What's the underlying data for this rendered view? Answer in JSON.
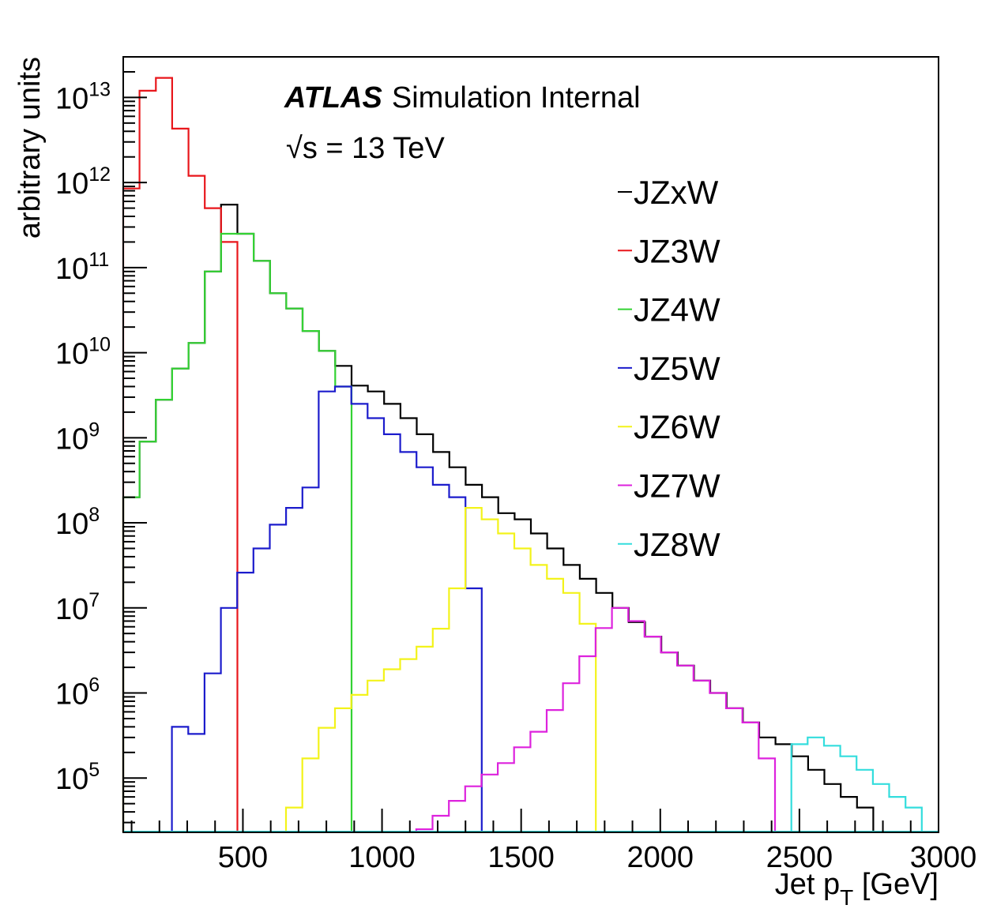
{
  "chart_data": {
    "type": "histogram",
    "x_scale": "linear",
    "y_scale": "log",
    "xlim": [
      70,
      3000
    ],
    "ylim": [
      23000,
      30000000000000
    ],
    "bin_width": 58.6,
    "xlabel_main": "Jet p",
    "xlabel_sub": "T",
    "xlabel_unit": " [GeV]",
    "ylabel": "arbitrary units",
    "x_ticks": [
      500,
      1000,
      1500,
      2000,
      2500,
      3000
    ],
    "x_tick_labels": [
      "500",
      "1000",
      "1500",
      "2000",
      "2500",
      "3000"
    ],
    "y_tick_exponents": [
      5,
      6,
      7,
      8,
      9,
      10,
      11,
      12,
      13
    ],
    "y_tick_base": "10",
    "annotation": {
      "atlas": "ATLAS",
      "status": "Simulation Internal",
      "energy_sqrt": "√s",
      "energy_rest": " = 13 TeV"
    },
    "legend_position": "top-right",
    "series": [
      {
        "name": "JZxW",
        "color": "#000000",
        "start": 70,
        "values": [
          200000000.0,
          900000000.0,
          2800000000.0,
          6500000000.0,
          13000000000.0,
          90000000000.0,
          550000000000.0,
          250000000000.0,
          120000000000.0,
          50000000000.0,
          33000000000.0,
          18000000000.0,
          10500000000.0,
          7000000000.0,
          4100000000.0,
          3500000000.0,
          2500000000.0,
          1700000000.0,
          1100000000.0,
          680000000.0,
          450000000.0,
          280000000.0,
          200000000.0,
          130000000.0,
          110000000.0,
          75000000.0,
          50000000.0,
          32000000.0,
          22000000.0,
          15000000.0,
          10000000.0,
          6800000.0,
          4600000.0,
          3000000.0,
          2100000.0,
          1400000.0,
          1000000.0,
          660000.0,
          450000.0,
          300000.0,
          250000.0,
          180000.0,
          125000.0,
          85000.0,
          60000.0,
          45000.0
        ]
      },
      {
        "name": "JZ3W",
        "color": "#e8161b",
        "start": 70,
        "values": [
          850000000000.0,
          12000000000000.0,
          17000000000000.0,
          4300000000000.0,
          1200000000000.0,
          500000000000.0,
          200000000000.0
        ]
      },
      {
        "name": "JZ4W",
        "color": "#33d233",
        "start": 70,
        "values": [
          200000000.0,
          900000000.0,
          2800000000.0,
          6500000000.0,
          13000000000.0,
          90000000000.0,
          250000000000.0,
          250000000000.0,
          120000000000.0,
          50000000000.0,
          33000000000.0,
          18000000000.0,
          10500000000.0,
          4000000000.0
        ]
      },
      {
        "name": "JZ5W",
        "color": "#1c1ccc",
        "start": 245,
        "values": [
          400000.0,
          330000.0,
          1700000.0,
          10000000.0,
          26000000.0,
          50000000.0,
          95000000.0,
          150000000.0,
          260000000.0,
          3500000000.0,
          4000000000.0,
          2500000000.0,
          1700000000.0,
          1100000000.0,
          680000000.0,
          450000000.0,
          280000000.0,
          200000000.0,
          17000000.0
        ]
      },
      {
        "name": "JZ6W",
        "color": "#f3f31a",
        "start": 655,
        "values": [
          45000.0,
          170000.0,
          390000.0,
          660000.0,
          950000.0,
          1400000.0,
          1900000.0,
          2500000.0,
          3500000.0,
          5700000.0,
          17000000.0,
          150000000.0,
          110000000.0,
          75000000.0,
          50000000.0,
          32000000.0,
          22000000.0,
          15000000.0,
          6500000.0
        ]
      },
      {
        "name": "JZ7W",
        "color": "#dd22dd",
        "start": 1123,
        "values": [
          25000.0,
          36000.0,
          54000.0,
          80000.0,
          110000.0,
          150000.0,
          230000.0,
          350000.0,
          630000.0,
          1300000.0,
          2700000.0,
          5800000.0,
          10000000.0,
          7000000.0,
          4600000.0,
          3000000.0,
          2100000.0,
          1400000.0,
          1000000.0,
          660000.0,
          450000.0,
          170000.0
        ]
      },
      {
        "name": "JZ8W",
        "color": "#33dddd",
        "start": 2471,
        "values": [
          250000.0,
          300000.0,
          240000.0,
          180000.0,
          125000.0,
          85000.0,
          60000.0,
          45000.0
        ]
      }
    ]
  }
}
